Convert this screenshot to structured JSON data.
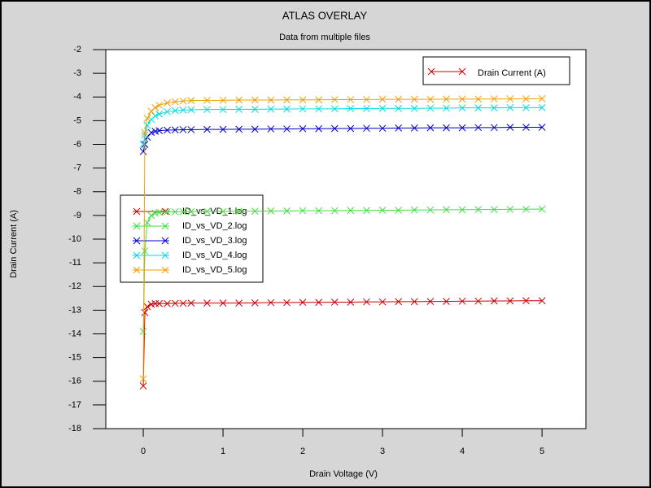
{
  "chart_data": {
    "type": "line",
    "title": "ATLAS OVERLAY",
    "subtitle": "Data from multiple files",
    "xlabel": "Drain Voltage (V)",
    "ylabel": "Drain Current (A)",
    "xlim": [
      -0.47,
      5.55
    ],
    "ylim": [
      -18,
      -2
    ],
    "xticks": [
      0,
      1,
      2,
      3,
      4,
      5
    ],
    "yticks": [
      -18,
      -17,
      -16,
      -15,
      -14,
      -13,
      -12,
      -11,
      -10,
      -9,
      -8,
      -7,
      -6,
      -5,
      -4,
      -3,
      -2
    ],
    "quantity_legend": {
      "label": "Drain Current (A)",
      "color": "#cc0000"
    },
    "x": [
      0,
      0.02,
      0.05,
      0.1,
      0.15,
      0.2,
      0.3,
      0.4,
      0.5,
      0.6,
      0.8,
      1,
      1.2,
      1.4,
      1.6,
      1.8,
      2,
      2.2,
      2.4,
      2.6,
      2.8,
      3,
      3.2,
      3.4,
      3.6,
      3.8,
      4,
      4.2,
      4.4,
      4.6,
      4.8,
      5
    ],
    "series": [
      {
        "name": "ID_vs_VD_1.log",
        "color": "#cc0000",
        "values": [
          -16.2,
          -13.1,
          -12.85,
          -12.75,
          -12.72,
          -12.72,
          -12.72,
          -12.71,
          -12.71,
          -12.7,
          -12.7,
          -12.7,
          -12.7,
          -12.69,
          -12.68,
          -12.68,
          -12.67,
          -12.67,
          -12.66,
          -12.66,
          -12.65,
          -12.65,
          -12.64,
          -12.64,
          -12.63,
          -12.63,
          -12.62,
          -12.62,
          -12.61,
          -12.61,
          -12.6,
          -12.6
        ]
      },
      {
        "name": "ID_vs_VD_2.log",
        "color": "#44dd44",
        "values": [
          -13.9,
          -10.5,
          -9.3,
          -9.0,
          -8.9,
          -8.87,
          -8.85,
          -8.85,
          -8.84,
          -8.84,
          -8.83,
          -8.83,
          -8.82,
          -8.82,
          -8.81,
          -8.81,
          -8.8,
          -8.8,
          -8.8,
          -8.79,
          -8.79,
          -8.78,
          -8.78,
          -8.77,
          -8.77,
          -8.76,
          -8.76,
          -8.75,
          -8.75,
          -8.74,
          -8.74,
          -8.73
        ]
      },
      {
        "name": "ID_vs_VD_3.log",
        "color": "#0000cc",
        "values": [
          -6.3,
          -6.0,
          -5.7,
          -5.5,
          -5.45,
          -5.42,
          -5.4,
          -5.39,
          -5.38,
          -5.38,
          -5.37,
          -5.37,
          -5.36,
          -5.36,
          -5.35,
          -5.35,
          -5.34,
          -5.34,
          -5.33,
          -5.33,
          -5.32,
          -5.32,
          -5.31,
          -5.31,
          -5.3,
          -5.3,
          -5.3,
          -5.29,
          -5.29,
          -5.28,
          -5.28,
          -5.28
        ]
      },
      {
        "name": "ID_vs_VD_4.log",
        "color": "#00dddd",
        "values": [
          -6.0,
          -5.6,
          -5.2,
          -4.95,
          -4.8,
          -4.72,
          -4.62,
          -4.58,
          -4.55,
          -4.54,
          -4.53,
          -4.53,
          -4.52,
          -4.52,
          -4.51,
          -4.51,
          -4.5,
          -4.5,
          -4.5,
          -4.49,
          -4.49,
          -4.48,
          -4.48,
          -4.48,
          -4.47,
          -4.47,
          -4.46,
          -4.46,
          -4.46,
          -4.45,
          -4.45,
          -4.45
        ]
      },
      {
        "name": "ID_vs_VD_5.log",
        "color": "#f0a000",
        "values": [
          -15.9,
          -5.5,
          -4.9,
          -4.6,
          -4.45,
          -4.35,
          -4.25,
          -4.2,
          -4.17,
          -4.15,
          -4.14,
          -4.14,
          -4.13,
          -4.13,
          -4.13,
          -4.12,
          -4.12,
          -4.12,
          -4.11,
          -4.11,
          -4.11,
          -4.1,
          -4.1,
          -4.1,
          -4.1,
          -4.09,
          -4.09,
          -4.09,
          -4.08,
          -4.08,
          -4.08,
          -4.07
        ]
      }
    ]
  }
}
